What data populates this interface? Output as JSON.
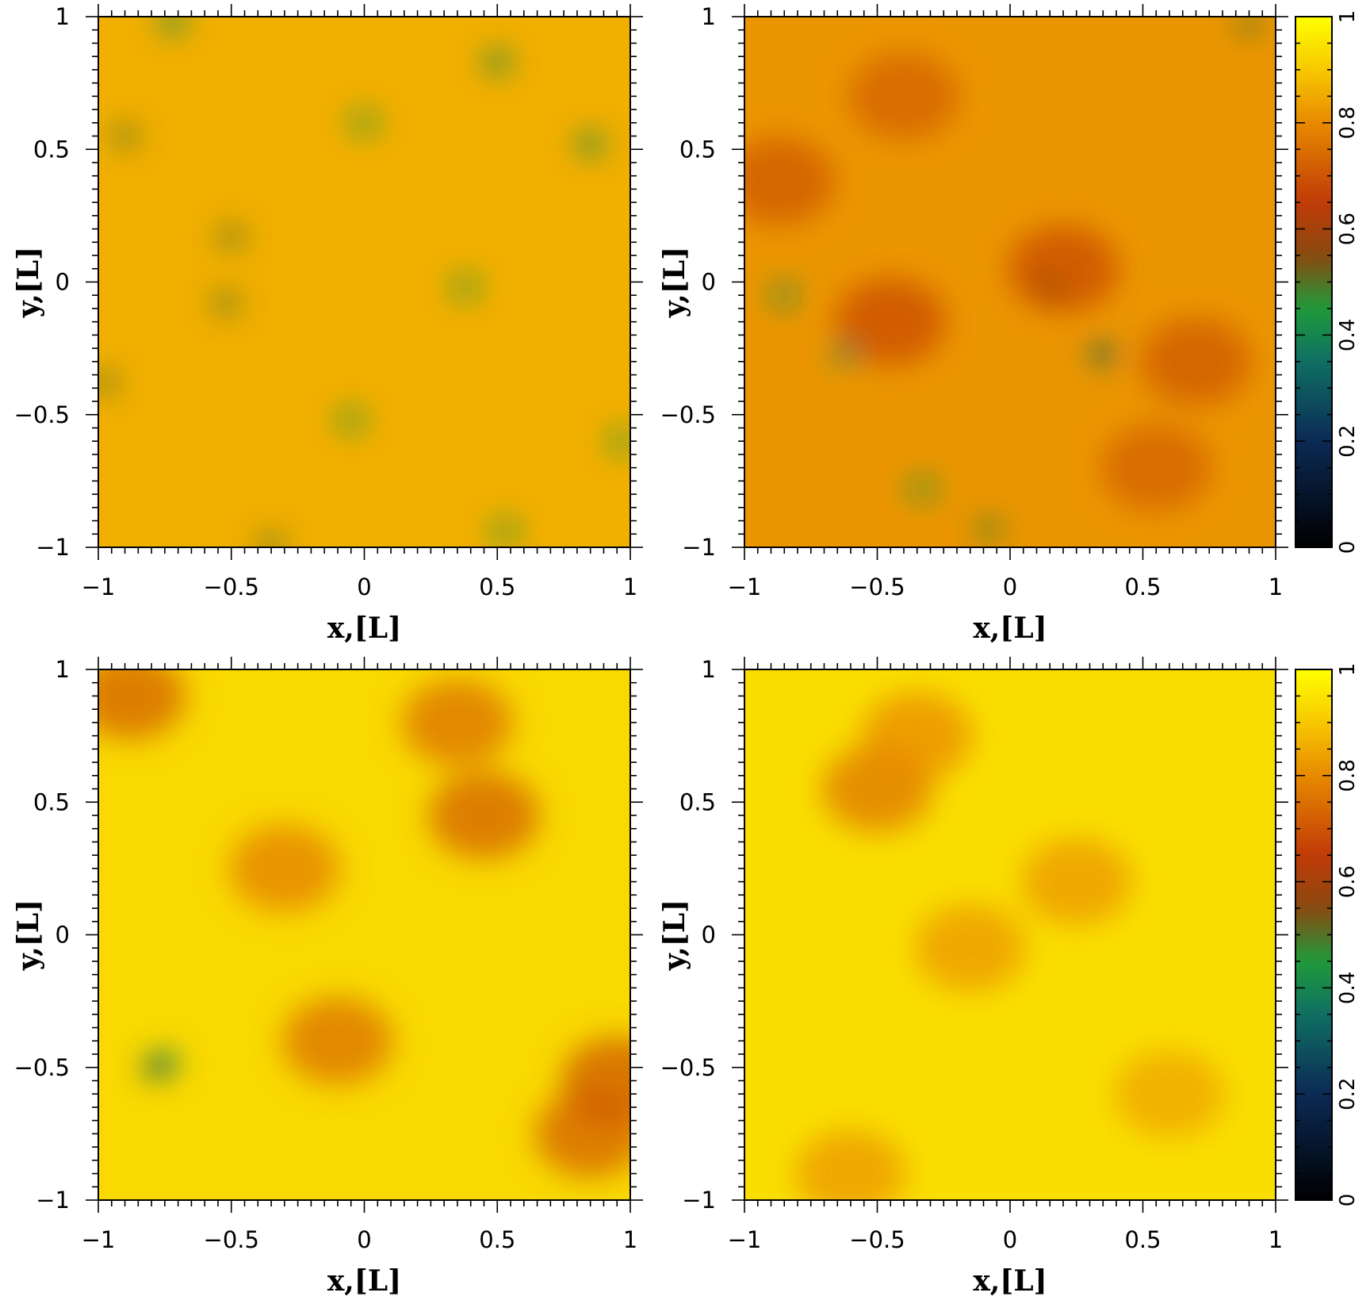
{
  "chart_data": [
    {
      "type": "heatmap",
      "panel": "top-left",
      "xlabel": "x,[L]",
      "ylabel": "y,[L]",
      "xlim": [
        -1,
        1
      ],
      "ylim": [
        -1,
        1
      ],
      "xticks": [
        "−1",
        "−0.5",
        "0",
        "0.5",
        "1"
      ],
      "yticks": [
        "−1",
        "−0.5",
        "0",
        "0.5",
        "1"
      ],
      "base_value": 0.86,
      "features": [
        {
          "x": -0.72,
          "y": 0.98,
          "v": 0.4
        },
        {
          "x": 0.5,
          "y": 0.83,
          "v": 0.4
        },
        {
          "x": -0.9,
          "y": 0.55,
          "v": 0.5
        },
        {
          "x": 0.0,
          "y": 0.6,
          "v": 0.45
        },
        {
          "x": 0.85,
          "y": 0.52,
          "v": 0.4
        },
        {
          "x": -0.5,
          "y": 0.17,
          "v": 0.5
        },
        {
          "x": -0.52,
          "y": -0.08,
          "v": 0.5
        },
        {
          "x": 0.38,
          "y": -0.02,
          "v": 0.45
        },
        {
          "x": -0.98,
          "y": -0.38,
          "v": 0.5
        },
        {
          "x": -0.05,
          "y": -0.52,
          "v": 0.45
        },
        {
          "x": 0.97,
          "y": -0.6,
          "v": 0.45
        },
        {
          "x": 0.53,
          "y": -0.94,
          "v": 0.45
        },
        {
          "x": -0.35,
          "y": -0.99,
          "v": 0.5
        }
      ]
    },
    {
      "type": "heatmap",
      "panel": "top-right",
      "xlabel": "x,[L]",
      "ylabel": "y,[L]",
      "xlim": [
        -1,
        1
      ],
      "ylim": [
        -1,
        1
      ],
      "xticks": [
        "−1",
        "−0.5",
        "0",
        "0.5",
        "1"
      ],
      "yticks": [
        "−1",
        "−0.5",
        "0",
        "0.5",
        "1"
      ],
      "base_value": 0.82,
      "features": [
        {
          "x": -0.87,
          "y": 0.38,
          "v": 0.7
        },
        {
          "x": -0.45,
          "y": -0.15,
          "v": 0.68
        },
        {
          "x": 0.2,
          "y": 0.05,
          "v": 0.68
        },
        {
          "x": 0.7,
          "y": -0.3,
          "v": 0.7
        },
        {
          "x": -0.4,
          "y": 0.7,
          "v": 0.72
        },
        {
          "x": 0.55,
          "y": -0.7,
          "v": 0.72
        },
        {
          "x": -0.85,
          "y": -0.05,
          "v": 0.42
        },
        {
          "x": -0.62,
          "y": -0.27,
          "v": 0.4
        },
        {
          "x": 0.35,
          "y": -0.27,
          "v": 0.3
        },
        {
          "x": -0.33,
          "y": -0.78,
          "v": 0.45
        },
        {
          "x": -0.08,
          "y": -0.93,
          "v": 0.48
        },
        {
          "x": 0.9,
          "y": 0.97,
          "v": 0.5
        },
        {
          "x": 0.15,
          "y": -0.02,
          "v": 0.55
        }
      ]
    },
    {
      "type": "heatmap",
      "panel": "bottom-left",
      "xlabel": "x,[L]",
      "ylabel": "y,[L]",
      "xlim": [
        -1,
        1
      ],
      "ylim": [
        -1,
        1
      ],
      "xticks": [
        "−1",
        "−0.5",
        "0",
        "0.5",
        "1"
      ],
      "yticks": [
        "−1",
        "−0.5",
        "0",
        "0.5",
        "1"
      ],
      "base_value": 0.93,
      "features": [
        {
          "x": -0.78,
          "y": -0.5,
          "v": 0.15
        },
        {
          "x": -0.75,
          "y": -0.48,
          "v": 0.35
        },
        {
          "x": -0.88,
          "y": 0.9,
          "v": 0.72
        },
        {
          "x": 0.45,
          "y": 0.45,
          "v": 0.72
        },
        {
          "x": 0.85,
          "y": -0.75,
          "v": 0.72
        },
        {
          "x": 0.95,
          "y": -0.55,
          "v": 0.7
        },
        {
          "x": -0.1,
          "y": -0.4,
          "v": 0.75
        },
        {
          "x": 0.35,
          "y": 0.8,
          "v": 0.75
        },
        {
          "x": -0.3,
          "y": 0.25,
          "v": 0.78
        }
      ]
    },
    {
      "type": "heatmap",
      "panel": "bottom-right",
      "xlabel": "x,[L]",
      "ylabel": "y,[L]",
      "xlim": [
        -1,
        1
      ],
      "ylim": [
        -1,
        1
      ],
      "xticks": [
        "−1",
        "−0.5",
        "0",
        "0.5",
        "1"
      ],
      "yticks": [
        "−1",
        "−0.5",
        "0",
        "0.5",
        "1"
      ],
      "base_value": 0.94,
      "features": [
        {
          "x": -0.5,
          "y": 0.55,
          "v": 0.76
        },
        {
          "x": -0.35,
          "y": 0.75,
          "v": 0.8
        },
        {
          "x": 0.25,
          "y": 0.2,
          "v": 0.82
        },
        {
          "x": -0.6,
          "y": -0.9,
          "v": 0.82
        },
        {
          "x": 0.6,
          "y": -0.6,
          "v": 0.84
        },
        {
          "x": -0.15,
          "y": -0.05,
          "v": 0.82
        }
      ]
    }
  ],
  "colorbars": [
    {
      "name": "top-colorbar",
      "range": [
        0,
        1
      ],
      "ticks": [
        "0",
        "0.2",
        "0.4",
        "0.6",
        "0.8",
        "1"
      ]
    },
    {
      "name": "bottom-colorbar",
      "range": [
        0,
        1
      ],
      "ticks": [
        "0",
        "0.2",
        "0.4",
        "0.6",
        "0.8",
        "1"
      ]
    }
  ],
  "colormap": [
    {
      "v": 0.0,
      "color": "#000000"
    },
    {
      "v": 0.2,
      "color": "#0b2a55"
    },
    {
      "v": 0.35,
      "color": "#0f6f63"
    },
    {
      "v": 0.45,
      "color": "#1f9a3a"
    },
    {
      "v": 0.55,
      "color": "#8a4a10"
    },
    {
      "v": 0.65,
      "color": "#c03a08"
    },
    {
      "v": 0.8,
      "color": "#e88a00"
    },
    {
      "v": 0.9,
      "color": "#f7c800"
    },
    {
      "v": 1.0,
      "color": "#ffff00"
    }
  ]
}
